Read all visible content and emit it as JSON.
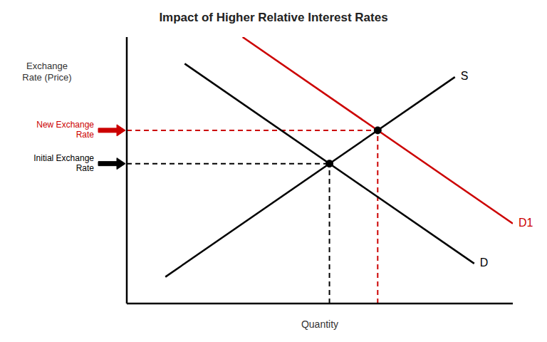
{
  "chart_data": {
    "type": "line",
    "title": "Impact of Higher Relative Interest Rates",
    "xlabel": "Quantity",
    "ylabel": "Exchange\nRate (Price)",
    "xlim": [
      0,
      10
    ],
    "ylim": [
      0,
      10
    ],
    "xticks": [],
    "yticks": [],
    "tick_labels": false,
    "grid": false,
    "series": [
      {
        "name": "S",
        "color": "#000000",
        "x": [
          1.0,
          8.5
        ],
        "values": [
          1.0,
          8.5
        ]
      },
      {
        "name": "D",
        "color": "#000000",
        "x": [
          1.5,
          9.0
        ],
        "values": [
          9.0,
          1.5
        ]
      },
      {
        "name": "D1",
        "color": "#cc0000",
        "x": [
          3.0,
          10.0
        ],
        "values": [
          10.0,
          3.0
        ]
      }
    ],
    "annotations": [
      {
        "text": "Initial Exchange\nRate",
        "x": 5.25,
        "y": 5.25,
        "color": "#000000"
      },
      {
        "text": "New Exchange\nRate",
        "x": 6.5,
        "y": 6.5,
        "color": "#cc0000"
      }
    ]
  }
}
